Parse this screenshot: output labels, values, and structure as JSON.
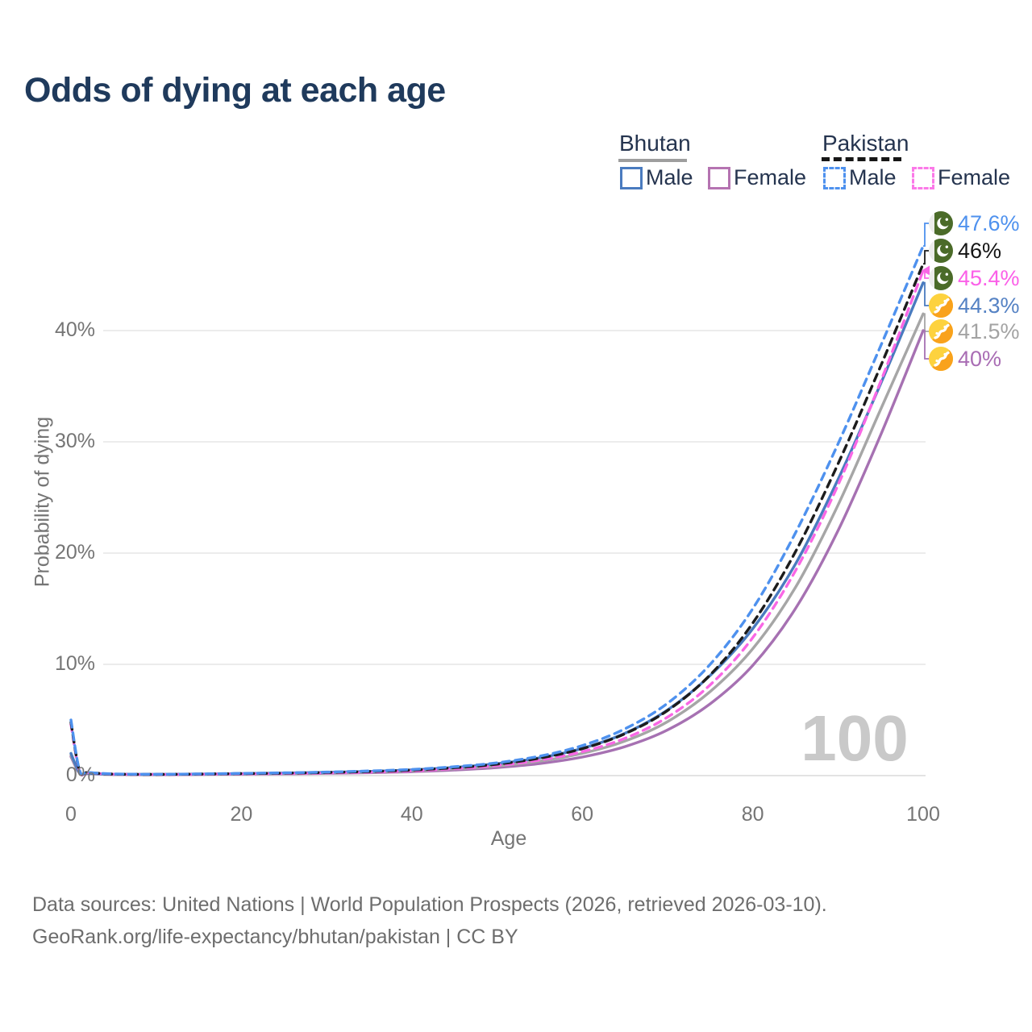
{
  "title": "Odds of dying at each age",
  "watermark_age": "100",
  "legend": {
    "groups": [
      {
        "name": "Bhutan",
        "line_style": "solid",
        "underline_color": "#9e9e9e",
        "items": [
          {
            "label": "Male",
            "color": "#4a7bbf"
          },
          {
            "label": "Female",
            "color": "#b573b1"
          }
        ]
      },
      {
        "name": "Pakistan",
        "line_style": "dashed",
        "underline_color": "#161616",
        "items": [
          {
            "label": "Male",
            "color": "#4e91ee"
          },
          {
            "label": "Female",
            "color": "#fb79e8"
          }
        ]
      }
    ]
  },
  "footer": {
    "line1": "Data sources: United Nations | World Population Prospects (2026, retrieved 2026-03-10).",
    "line2": "GeoRank.org/life-expectancy/bhutan/pakistan | CC BY"
  },
  "chart_data": {
    "type": "line",
    "title": "Odds of dying at each age",
    "xlabel": "Age",
    "ylabel": "Probability of dying",
    "xlim": [
      0,
      100
    ],
    "ylim": [
      0,
      0.48
    ],
    "x_ticks": [
      0,
      20,
      40,
      60,
      80,
      100
    ],
    "y_ticks": [
      "0%",
      "10%",
      "20%",
      "30%",
      "40%"
    ],
    "y_tick_values": [
      0,
      10,
      20,
      30,
      40
    ],
    "grid": "horizontal-only",
    "legend_position": "top-right",
    "x": [
      0,
      1,
      2,
      5,
      10,
      15,
      20,
      25,
      30,
      35,
      40,
      45,
      50,
      55,
      60,
      65,
      70,
      75,
      80,
      85,
      90,
      95,
      100
    ],
    "series": [
      {
        "name": "Bhutan Female",
        "country": "Bhutan",
        "sex": "female",
        "color": "#a671b2",
        "dashed": false,
        "flag": "bhutan",
        "end_label": "40%",
        "label_color": "#a96db4",
        "values": [
          1.7,
          0.22,
          0.16,
          0.11,
          0.09,
          0.11,
          0.13,
          0.16,
          0.2,
          0.26,
          0.35,
          0.5,
          0.72,
          1.08,
          1.67,
          2.6,
          4.1,
          6.45,
          9.9,
          15.0,
          22.0,
          30.6,
          40.0
        ]
      },
      {
        "name": "Bhutan Both sexes",
        "country": "Bhutan",
        "sex": "both",
        "color": "#a6a6a6",
        "dashed": false,
        "flag": "bhutan",
        "end_label": "41.5%",
        "label_color": "#a3a3a3",
        "values": [
          1.85,
          0.25,
          0.18,
          0.12,
          0.1,
          0.12,
          0.15,
          0.19,
          0.24,
          0.31,
          0.42,
          0.6,
          0.87,
          1.3,
          2.0,
          3.1,
          4.85,
          7.55,
          11.4,
          16.9,
          24.3,
          32.9,
          41.5
        ]
      },
      {
        "name": "Bhutan Male",
        "country": "Bhutan",
        "sex": "male",
        "color": "#4a7bbf",
        "dashed": false,
        "flag": "bhutan",
        "end_label": "44.3%",
        "label_color": "#5582c4",
        "values": [
          2.0,
          0.28,
          0.2,
          0.13,
          0.11,
          0.14,
          0.18,
          0.23,
          0.29,
          0.38,
          0.52,
          0.74,
          1.07,
          1.6,
          2.45,
          3.8,
          5.9,
          9.0,
          13.2,
          19.0,
          26.6,
          35.2,
          44.3
        ]
      },
      {
        "name": "Pakistan Female",
        "country": "Pakistan",
        "sex": "female",
        "color": "#f967e5",
        "dashed": true,
        "flag": "pakistan",
        "end_label": "45.4%",
        "label_color": "#fb5fe8",
        "values": [
          4.6,
          0.4,
          0.26,
          0.13,
          0.1,
          0.12,
          0.16,
          0.19,
          0.24,
          0.31,
          0.43,
          0.62,
          0.91,
          1.39,
          2.15,
          3.35,
          5.25,
          8.15,
          12.4,
          18.4,
          26.1,
          35.4,
          45.4
        ]
      },
      {
        "name": "Pakistan Both sexes",
        "country": "Pakistan",
        "sex": "both",
        "color": "#1c1c1c",
        "dashed": true,
        "flag": "pakistan",
        "end_label": "46%",
        "label_color": "#141414",
        "values": [
          4.8,
          0.45,
          0.28,
          0.14,
          0.11,
          0.14,
          0.18,
          0.22,
          0.28,
          0.37,
          0.5,
          0.71,
          1.03,
          1.57,
          2.42,
          3.76,
          5.85,
          9.05,
          13.7,
          20.1,
          28.0,
          36.8,
          46.0
        ]
      },
      {
        "name": "Pakistan Male",
        "country": "Pakistan",
        "sex": "male",
        "color": "#4e91ee",
        "dashed": true,
        "flag": "pakistan",
        "end_label": "47.6%",
        "label_color": "#4e91ee",
        "values": [
          5.0,
          0.5,
          0.3,
          0.15,
          0.12,
          0.15,
          0.2,
          0.25,
          0.32,
          0.42,
          0.56,
          0.8,
          1.15,
          1.75,
          2.7,
          4.2,
          6.5,
          10.0,
          15.0,
          21.8,
          29.8,
          38.6,
          47.6
        ]
      }
    ]
  }
}
